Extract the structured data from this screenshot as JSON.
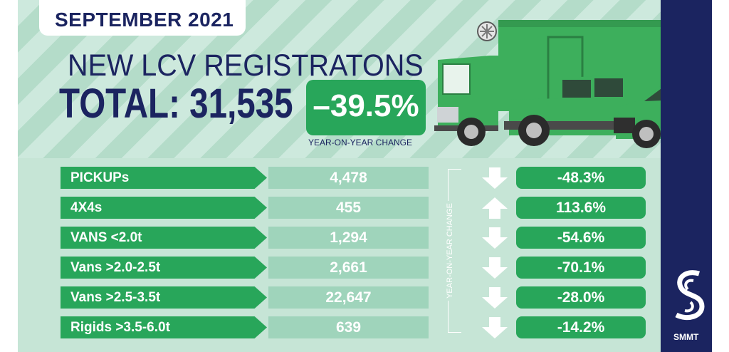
{
  "header": {
    "date": "SEPTEMBER 2021",
    "title": "NEW LCV REGISTRATONS",
    "total_label": "TOTAL:",
    "total_value": "31,535",
    "change_value": "–39.5%",
    "change_label": "YEAR-ON-YEAR CHANGE"
  },
  "side_label": "YEAR-ON-YEAR CHANGE",
  "rows": [
    {
      "label": "PICKUPs",
      "value": "4,478",
      "change": "-48.3%",
      "direction": "down"
    },
    {
      "label": "4X4s",
      "value": "455",
      "change": "113.6%",
      "direction": "up"
    },
    {
      "label": "VANS <2.0t",
      "value": "1,294",
      "change": "-54.6%",
      "direction": "down"
    },
    {
      "label": "Vans >2.0-2.5t",
      "value": "2,661",
      "change": "-70.1%",
      "direction": "down"
    },
    {
      "label": "Vans >2.5-3.5t",
      "value": "22,647",
      "change": "-28.0%",
      "direction": "down"
    },
    {
      "label": "Rigids >3.5-6.0t",
      "value": "639",
      "change": "-14.2%",
      "direction": "down"
    }
  ],
  "brand": {
    "name": "SMMT",
    "icon": "smmt-logo-icon"
  },
  "colors": {
    "navy": "#1b2460",
    "green": "#28a65a",
    "light_green": "#9fd4bb",
    "vehicle_green": "#3daf5c"
  }
}
